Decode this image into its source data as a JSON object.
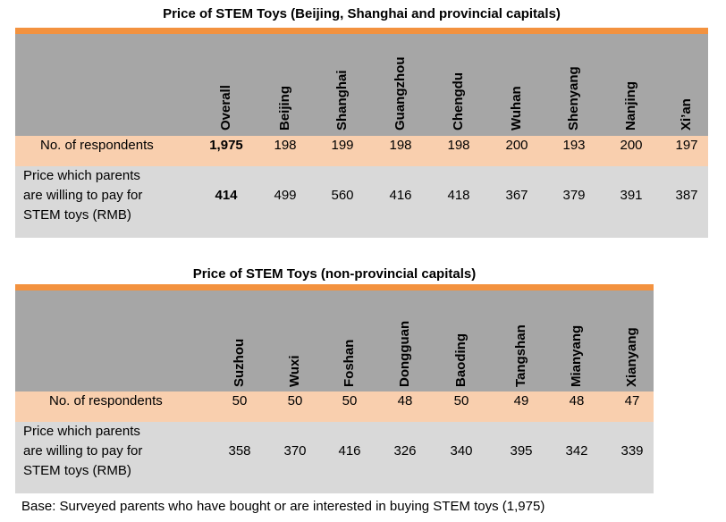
{
  "table1": {
    "title": "Price of STEM Toys (Beijing, Shanghai and provincial capitals)",
    "columns": [
      "Overall",
      "Beijing",
      "Shanghai",
      "Guangzhou",
      "Chengdu",
      "Wuhan",
      "Shenyang",
      "Nanjing",
      "Xi’an"
    ],
    "respondents_label": "No. of respondents",
    "respondents": [
      "1,975",
      "198",
      "199",
      "198",
      "198",
      "200",
      "193",
      "200",
      "197"
    ],
    "price_label_lines": [
      "Price which parents",
      "are willing to pay for",
      "STEM toys (RMB)"
    ],
    "prices": [
      "414",
      "499",
      "560",
      "416",
      "418",
      "367",
      "379",
      "391",
      "387"
    ]
  },
  "table2": {
    "title": "Price of STEM Toys (non-provincial capitals)",
    "columns": [
      "Suzhou",
      "Wuxi",
      "Foshan",
      "Dongguan",
      "Baoding",
      "Tangshan",
      "Mianyang",
      "Xianyang"
    ],
    "respondents_label": "No. of respondents",
    "respondents": [
      "50",
      "50",
      "50",
      "48",
      "50",
      "49",
      "48",
      "47"
    ],
    "price_label_lines": [
      "Price which parents",
      "are willing to pay for",
      "STEM toys (RMB)"
    ],
    "prices": [
      "358",
      "370",
      "416",
      "326",
      "340",
      "395",
      "342",
      "339"
    ]
  },
  "base_note": "Base: Surveyed parents who have bought or are interested in buying STEM toys (1,975)",
  "colors": {
    "orange_bar": "#f3923f",
    "header_gray": "#a6a6a6",
    "respondent_row": "#f9cfae",
    "price_row": "#d9d9d9"
  }
}
